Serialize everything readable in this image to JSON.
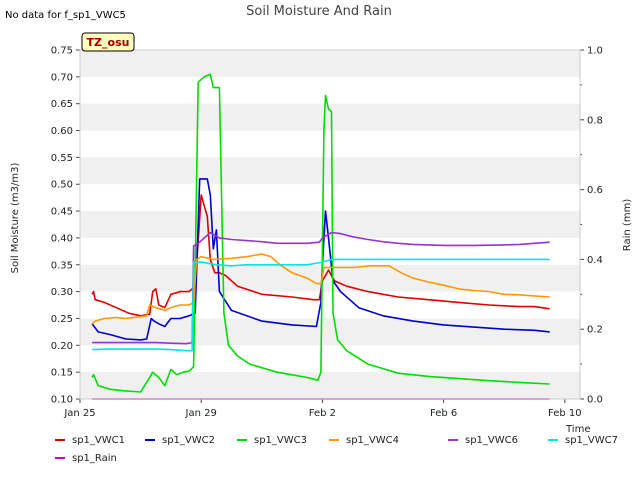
{
  "page_title": "Soil Moisture And Rain",
  "note": "No data for f_sp1_VWC5",
  "badge": "TZ_osu",
  "chart_data": {
    "type": "line",
    "title": "Soil Moisture And Rain",
    "xlabel": "Time",
    "ylabel": "Soil Moisture (m3/m3)",
    "ylabel_right": "Rain (mm)",
    "xlim": [
      0,
      15.5
    ],
    "ylim": [
      0.1,
      0.75
    ],
    "ylim_right": [
      0.0,
      1.0
    ],
    "x_ticks": [
      {
        "x": 0,
        "label": "Jan 25"
      },
      {
        "x": 4,
        "label": "Jan 29"
      },
      {
        "x": 8,
        "label": "Feb 2"
      },
      {
        "x": 12,
        "label": "Feb 6"
      },
      {
        "x": 16,
        "label": "Feb 10"
      }
    ],
    "y_ticks": [
      "0.10",
      "0.15",
      "0.20",
      "0.25",
      "0.30",
      "0.35",
      "0.40",
      "0.45",
      "0.50",
      "0.55",
      "0.60",
      "0.65",
      "0.70",
      "0.75"
    ],
    "y_ticks_right": [
      "0.0",
      "0.2",
      "0.4",
      "0.6",
      "0.8",
      "1.0"
    ],
    "grid": "horizontal alternating bands",
    "legend_position": "bottom",
    "series": [
      {
        "name": "sp1_VWC1",
        "color": "#dd0000",
        "axis": "left",
        "points": [
          [
            0.4,
            0.295
          ],
          [
            0.45,
            0.3
          ],
          [
            0.5,
            0.285
          ],
          [
            0.8,
            0.28
          ],
          [
            1.2,
            0.27
          ],
          [
            1.6,
            0.26
          ],
          [
            2.0,
            0.255
          ],
          [
            2.3,
            0.258
          ],
          [
            2.4,
            0.3
          ],
          [
            2.5,
            0.305
          ],
          [
            2.6,
            0.275
          ],
          [
            2.8,
            0.27
          ],
          [
            3.0,
            0.295
          ],
          [
            3.3,
            0.3
          ],
          [
            3.6,
            0.3
          ],
          [
            3.8,
            0.31
          ],
          [
            4.0,
            0.48
          ],
          [
            4.1,
            0.46
          ],
          [
            4.2,
            0.44
          ],
          [
            4.3,
            0.36
          ],
          [
            4.45,
            0.335
          ],
          [
            4.6,
            0.335
          ],
          [
            4.8,
            0.33
          ],
          [
            5.2,
            0.31
          ],
          [
            6.0,
            0.295
          ],
          [
            7.0,
            0.29
          ],
          [
            7.7,
            0.285
          ],
          [
            7.9,
            0.285
          ],
          [
            8.0,
            0.32
          ],
          [
            8.1,
            0.33
          ],
          [
            8.2,
            0.34
          ],
          [
            8.4,
            0.32
          ],
          [
            8.8,
            0.31
          ],
          [
            9.5,
            0.3
          ],
          [
            10.5,
            0.29
          ],
          [
            11.5,
            0.285
          ],
          [
            12.5,
            0.28
          ],
          [
            13.5,
            0.275
          ],
          [
            14.5,
            0.272
          ],
          [
            15.0,
            0.272
          ],
          [
            15.5,
            0.268
          ]
        ]
      },
      {
        "name": "sp1_VWC2",
        "color": "#0000cc",
        "axis": "left",
        "points": [
          [
            0.4,
            0.24
          ],
          [
            0.6,
            0.225
          ],
          [
            1.0,
            0.22
          ],
          [
            1.5,
            0.212
          ],
          [
            2.0,
            0.21
          ],
          [
            2.2,
            0.212
          ],
          [
            2.35,
            0.25
          ],
          [
            2.45,
            0.245
          ],
          [
            2.6,
            0.24
          ],
          [
            2.8,
            0.235
          ],
          [
            3.0,
            0.25
          ],
          [
            3.3,
            0.25
          ],
          [
            3.6,
            0.255
          ],
          [
            3.8,
            0.26
          ],
          [
            3.95,
            0.51
          ],
          [
            4.2,
            0.51
          ],
          [
            4.3,
            0.48
          ],
          [
            4.4,
            0.38
          ],
          [
            4.5,
            0.415
          ],
          [
            4.6,
            0.3
          ],
          [
            5.0,
            0.265
          ],
          [
            6.0,
            0.245
          ],
          [
            7.0,
            0.238
          ],
          [
            7.8,
            0.235
          ],
          [
            7.95,
            0.28
          ],
          [
            8.0,
            0.35
          ],
          [
            8.1,
            0.45
          ],
          [
            8.2,
            0.4
          ],
          [
            8.35,
            0.32
          ],
          [
            8.6,
            0.3
          ],
          [
            9.2,
            0.27
          ],
          [
            10.0,
            0.255
          ],
          [
            11.0,
            0.245
          ],
          [
            12.0,
            0.238
          ],
          [
            13.0,
            0.234
          ],
          [
            14.0,
            0.23
          ],
          [
            15.0,
            0.228
          ],
          [
            15.5,
            0.225
          ]
        ]
      },
      {
        "name": "sp1_VWC3",
        "color": "#00dd00",
        "axis": "left",
        "points": [
          [
            0.4,
            0.14
          ],
          [
            0.45,
            0.145
          ],
          [
            0.6,
            0.125
          ],
          [
            1.0,
            0.118
          ],
          [
            1.5,
            0.115
          ],
          [
            2.0,
            0.113
          ],
          [
            2.3,
            0.14
          ],
          [
            2.4,
            0.15
          ],
          [
            2.6,
            0.14
          ],
          [
            2.8,
            0.125
          ],
          [
            3.0,
            0.155
          ],
          [
            3.2,
            0.145
          ],
          [
            3.4,
            0.15
          ],
          [
            3.6,
            0.152
          ],
          [
            3.75,
            0.16
          ],
          [
            3.9,
            0.69
          ],
          [
            4.1,
            0.7
          ],
          [
            4.3,
            0.705
          ],
          [
            4.4,
            0.68
          ],
          [
            4.6,
            0.68
          ],
          [
            4.75,
            0.26
          ],
          [
            4.9,
            0.2
          ],
          [
            5.2,
            0.18
          ],
          [
            5.6,
            0.165
          ],
          [
            6.5,
            0.15
          ],
          [
            7.5,
            0.14
          ],
          [
            7.85,
            0.135
          ],
          [
            7.95,
            0.15
          ],
          [
            8.05,
            0.6
          ],
          [
            8.1,
            0.665
          ],
          [
            8.2,
            0.64
          ],
          [
            8.3,
            0.635
          ],
          [
            8.35,
            0.26
          ],
          [
            8.5,
            0.21
          ],
          [
            8.8,
            0.19
          ],
          [
            9.5,
            0.165
          ],
          [
            10.5,
            0.148
          ],
          [
            11.5,
            0.142
          ],
          [
            12.5,
            0.138
          ],
          [
            13.5,
            0.134
          ],
          [
            14.5,
            0.131
          ],
          [
            15.5,
            0.128
          ]
        ]
      },
      {
        "name": "sp1_VWC4",
        "color": "#ff9900",
        "axis": "left",
        "points": [
          [
            0.4,
            0.24
          ],
          [
            0.5,
            0.245
          ],
          [
            0.8,
            0.25
          ],
          [
            1.2,
            0.252
          ],
          [
            1.5,
            0.25
          ],
          [
            1.8,
            0.252
          ],
          [
            2.2,
            0.255
          ],
          [
            2.3,
            0.275
          ],
          [
            2.5,
            0.27
          ],
          [
            2.8,
            0.265
          ],
          [
            3.0,
            0.27
          ],
          [
            3.3,
            0.275
          ],
          [
            3.6,
            0.275
          ],
          [
            3.75,
            0.28
          ],
          [
            3.85,
            0.36
          ],
          [
            4.0,
            0.365
          ],
          [
            4.4,
            0.36
          ],
          [
            5.0,
            0.362
          ],
          [
            5.5,
            0.365
          ],
          [
            6.0,
            0.37
          ],
          [
            6.3,
            0.365
          ],
          [
            6.6,
            0.35
          ],
          [
            7.0,
            0.335
          ],
          [
            7.5,
            0.325
          ],
          [
            7.8,
            0.315
          ],
          [
            7.95,
            0.315
          ],
          [
            8.05,
            0.345
          ],
          [
            8.4,
            0.345
          ],
          [
            9.0,
            0.345
          ],
          [
            9.6,
            0.348
          ],
          [
            10.2,
            0.348
          ],
          [
            10.6,
            0.335
          ],
          [
            11.0,
            0.325
          ],
          [
            11.5,
            0.318
          ],
          [
            12.0,
            0.312
          ],
          [
            12.5,
            0.305
          ],
          [
            13.0,
            0.302
          ],
          [
            13.5,
            0.3
          ],
          [
            14.0,
            0.295
          ],
          [
            14.5,
            0.294
          ],
          [
            15.0,
            0.292
          ],
          [
            15.5,
            0.29
          ]
        ]
      },
      {
        "name": "sp1_VWC6",
        "color": "#9933cc",
        "axis": "left",
        "points": [
          [
            0.4,
            0.205
          ],
          [
            1.0,
            0.205
          ],
          [
            1.5,
            0.205
          ],
          [
            2.0,
            0.205
          ],
          [
            2.5,
            0.205
          ],
          [
            3.0,
            0.204
          ],
          [
            3.5,
            0.203
          ],
          [
            3.7,
            0.205
          ],
          [
            3.75,
            0.385
          ],
          [
            3.9,
            0.39
          ],
          [
            4.0,
            0.395
          ],
          [
            4.3,
            0.41
          ],
          [
            4.6,
            0.4
          ],
          [
            5.0,
            0.397
          ],
          [
            5.5,
            0.395
          ],
          [
            6.0,
            0.393
          ],
          [
            6.5,
            0.39
          ],
          [
            7.0,
            0.39
          ],
          [
            7.5,
            0.39
          ],
          [
            7.9,
            0.392
          ],
          [
            8.0,
            0.4
          ],
          [
            8.3,
            0.41
          ],
          [
            8.6,
            0.408
          ],
          [
            9.0,
            0.402
          ],
          [
            9.5,
            0.397
          ],
          [
            10.0,
            0.393
          ],
          [
            10.5,
            0.39
          ],
          [
            11.0,
            0.388
          ],
          [
            11.5,
            0.387
          ],
          [
            12.0,
            0.386
          ],
          [
            13.0,
            0.386
          ],
          [
            14.0,
            0.387
          ],
          [
            14.5,
            0.388
          ],
          [
            15.0,
            0.39
          ],
          [
            15.5,
            0.392
          ]
        ]
      },
      {
        "name": "sp1_VWC7",
        "color": "#00e5e5",
        "axis": "left",
        "points": [
          [
            0.4,
            0.192
          ],
          [
            1.0,
            0.193
          ],
          [
            1.5,
            0.193
          ],
          [
            2.0,
            0.193
          ],
          [
            2.5,
            0.193
          ],
          [
            3.0,
            0.192
          ],
          [
            3.5,
            0.19
          ],
          [
            3.7,
            0.19
          ],
          [
            3.75,
            0.355
          ],
          [
            4.0,
            0.355
          ],
          [
            4.5,
            0.35
          ],
          [
            5.0,
            0.348
          ],
          [
            5.5,
            0.35
          ],
          [
            6.0,
            0.35
          ],
          [
            6.5,
            0.35
          ],
          [
            7.0,
            0.35
          ],
          [
            7.5,
            0.35
          ],
          [
            8.0,
            0.355
          ],
          [
            8.3,
            0.36
          ],
          [
            9.0,
            0.36
          ],
          [
            10.0,
            0.36
          ],
          [
            11.0,
            0.36
          ],
          [
            12.0,
            0.36
          ],
          [
            13.0,
            0.36
          ],
          [
            14.0,
            0.36
          ],
          [
            15.0,
            0.36
          ],
          [
            15.5,
            0.36
          ]
        ]
      },
      {
        "name": "sp1_Rain",
        "color": "#cc00cc",
        "axis": "right",
        "points": [
          [
            0.4,
            0.0
          ],
          [
            15.5,
            0.0
          ]
        ]
      }
    ]
  }
}
